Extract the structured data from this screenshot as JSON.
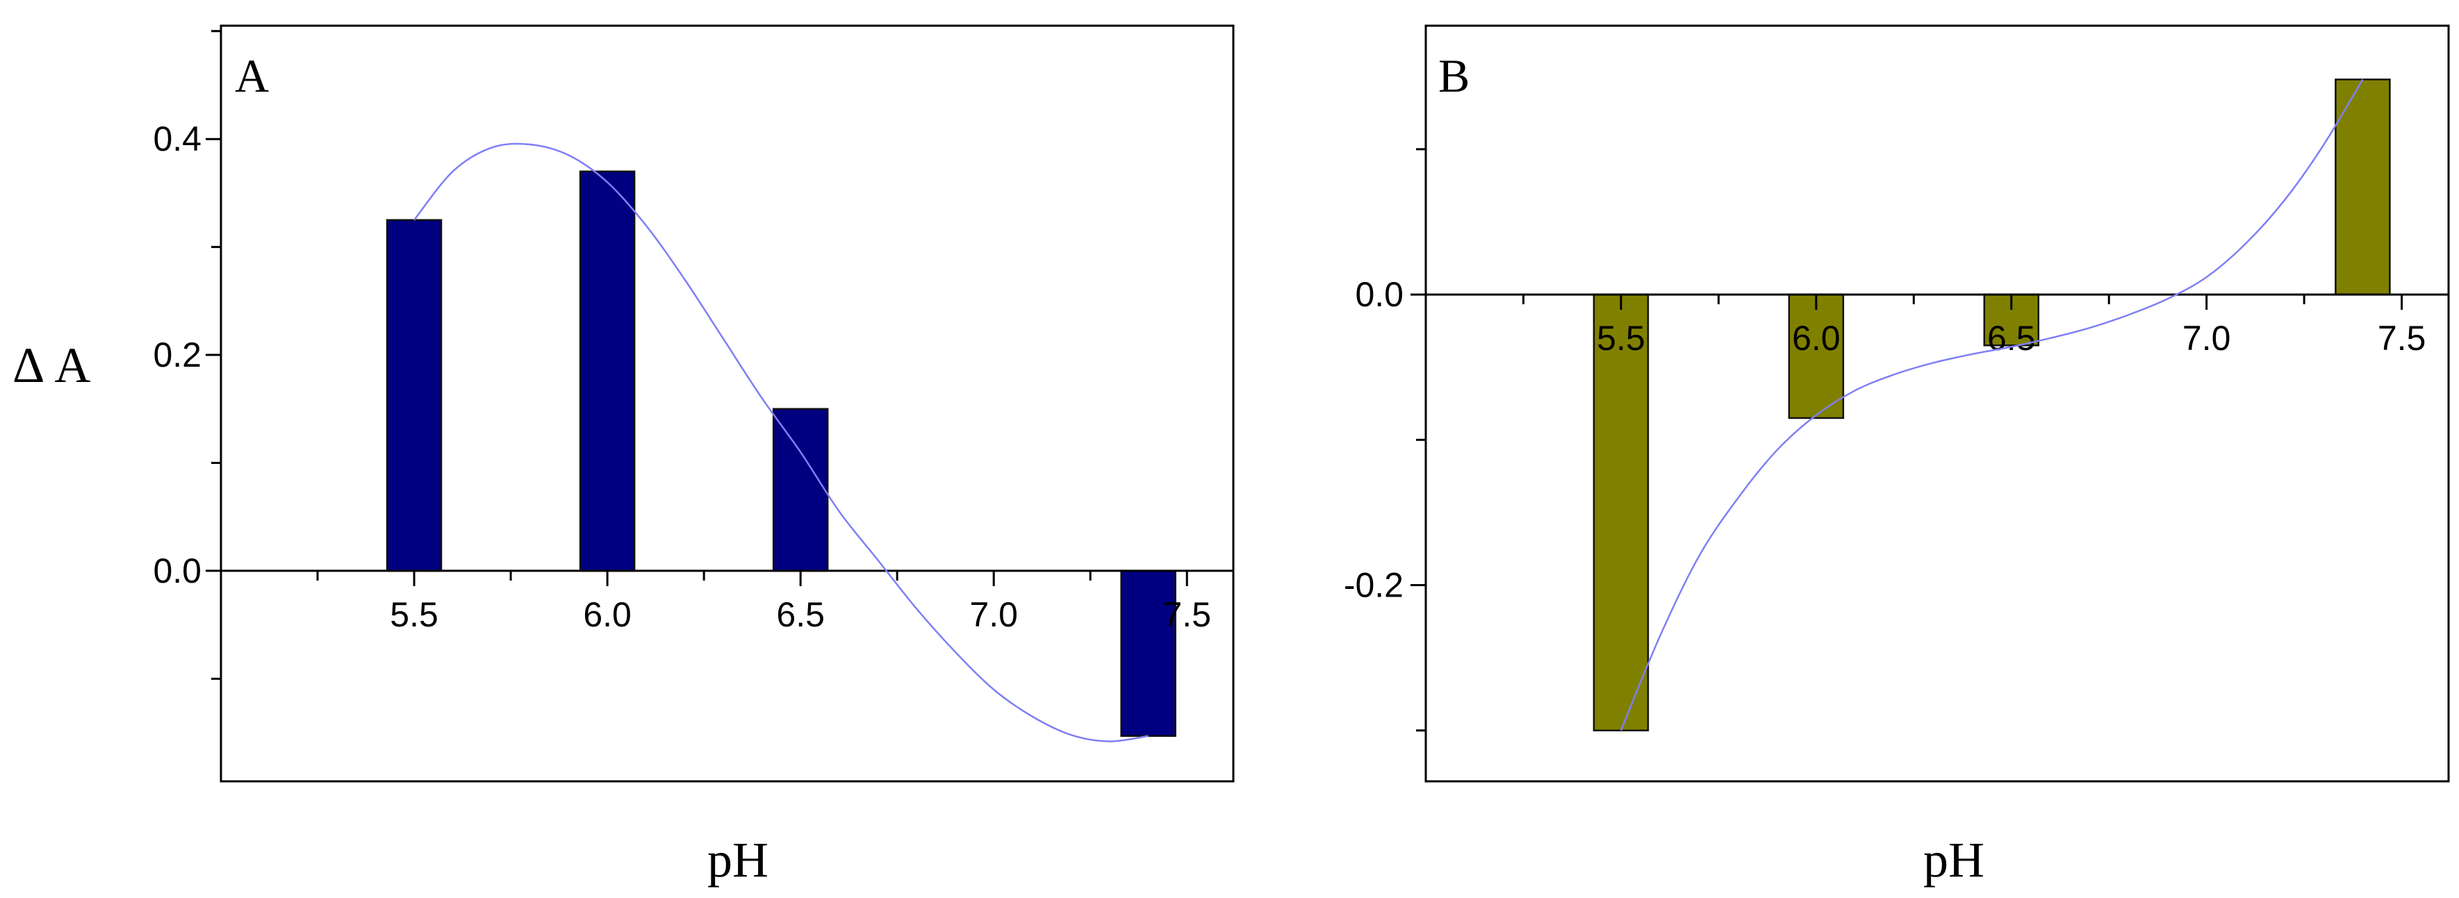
{
  "chart_data": [
    {
      "type": "bar",
      "panel_label": "A",
      "xlabel": "pH",
      "ylabel": "Δ A",
      "x": [
        5.5,
        6.0,
        6.5,
        7.4
      ],
      "values": [
        0.325,
        0.37,
        0.15,
        -0.153
      ],
      "bar_color": "#000080",
      "fit_curve_color": "#7f7ff5",
      "xlim": [
        5.0,
        7.62
      ],
      "ylim": [
        -0.195,
        0.505
      ],
      "xticks": [
        5.5,
        6.0,
        6.5,
        7.0,
        7.5
      ],
      "xtick_labels": [
        "5.5",
        "6.0",
        "6.5",
        "7.0",
        "7.5"
      ],
      "yticks": [
        0.0,
        0.2,
        0.4
      ],
      "ytick_labels": [
        "0.0",
        "0.2",
        "0.4"
      ],
      "fit_curve": {
        "x": [
          5.5,
          5.6,
          5.7,
          5.8,
          5.9,
          6.0,
          6.1,
          6.2,
          6.3,
          6.4,
          6.5,
          6.6,
          6.7,
          6.8,
          6.9,
          7.0,
          7.1,
          7.2,
          7.3,
          7.4
        ],
        "y": [
          0.325,
          0.37,
          0.392,
          0.395,
          0.385,
          0.36,
          0.32,
          0.27,
          0.215,
          0.16,
          0.11,
          0.055,
          0.01,
          -0.035,
          -0.075,
          -0.11,
          -0.135,
          -0.152,
          -0.158,
          -0.153
        ]
      }
    },
    {
      "type": "bar",
      "panel_label": "B",
      "xlabel": "pH",
      "x": [
        5.5,
        6.0,
        6.5,
        7.4
      ],
      "values": [
        -0.3,
        -0.085,
        -0.035,
        0.148
      ],
      "bar_color": "#808000",
      "fit_curve_color": "#7f7ff5",
      "xlim": [
        5.0,
        7.62
      ],
      "ylim": [
        -0.335,
        0.185
      ],
      "xticks": [
        5.5,
        6.0,
        6.5,
        7.0,
        7.5
      ],
      "xtick_labels": [
        "5.5",
        "6.0",
        "6.5",
        "7.0",
        "7.5"
      ],
      "yticks": [
        0.0,
        -0.2
      ],
      "ytick_labels": [
        "0.0",
        "-0.2"
      ],
      "fit_curve": {
        "x": [
          5.5,
          5.6,
          5.7,
          5.8,
          5.9,
          6.0,
          6.1,
          6.2,
          6.3,
          6.4,
          6.5,
          6.6,
          6.7,
          6.8,
          6.9,
          7.0,
          7.1,
          7.2,
          7.3,
          7.4
        ],
        "y": [
          -0.3,
          -0.235,
          -0.18,
          -0.14,
          -0.107,
          -0.083,
          -0.066,
          -0.055,
          -0.047,
          -0.041,
          -0.036,
          -0.03,
          -0.023,
          -0.014,
          -0.003,
          0.012,
          0.035,
          0.065,
          0.103,
          0.148
        ]
      }
    }
  ]
}
